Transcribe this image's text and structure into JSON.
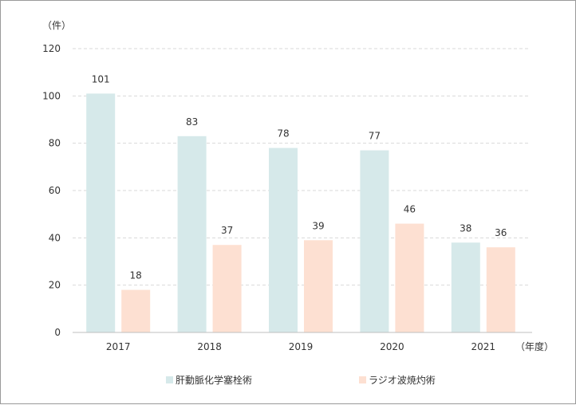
{
  "chart_data": {
    "type": "bar",
    "categories": [
      "2017",
      "2018",
      "2019",
      "2020",
      "2021"
    ],
    "series": [
      {
        "name": "肝動脈化学塞栓術",
        "values": [
          101,
          83,
          78,
          77,
          38
        ],
        "color": "#d6e9ea"
      },
      {
        "name": "ラジオ波焼灼術",
        "values": [
          18,
          37,
          39,
          46,
          36
        ],
        "color": "#fde0d2"
      }
    ],
    "y_unit": "（件）",
    "x_unit": "（年度）",
    "ylim": [
      0,
      120
    ],
    "yticks": [
      0,
      20,
      40,
      60,
      80,
      100,
      120
    ],
    "grid": true,
    "grid_style": "dashed",
    "legend_position": "bottom"
  }
}
